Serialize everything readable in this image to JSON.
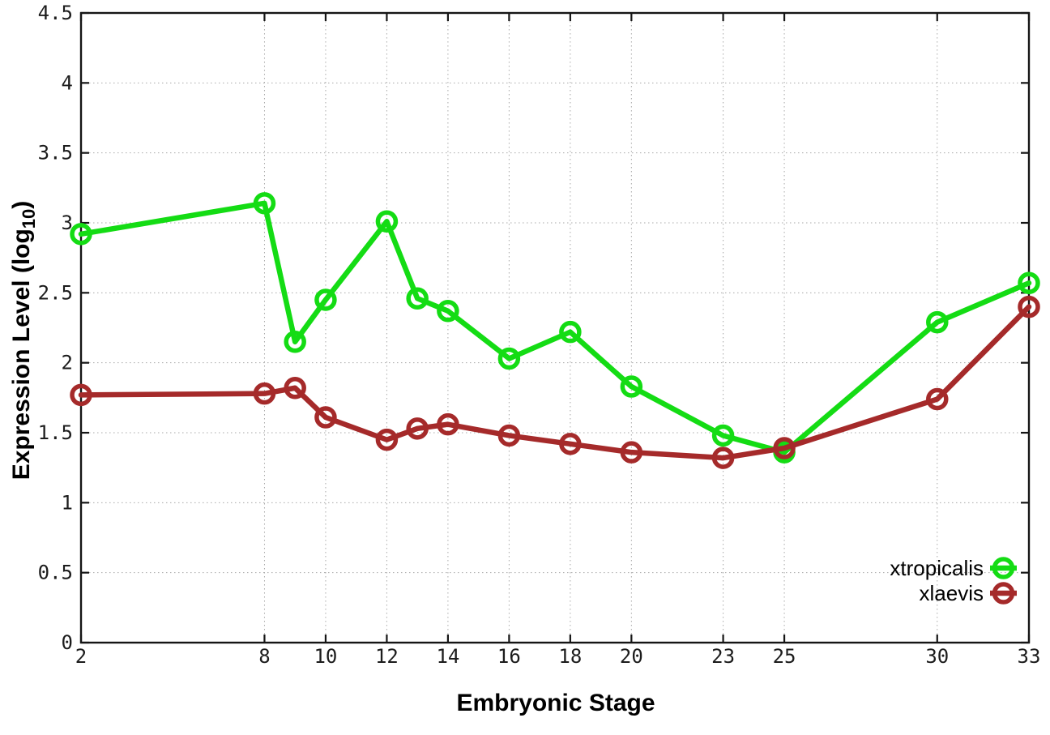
{
  "chart_data": {
    "type": "line",
    "title": "",
    "xlabel": "Embryonic Stage",
    "ylabel": "Expression Level (log10)",
    "ylabel_parts": {
      "main": "Expression Level (log",
      "sub": "10",
      "close": ")"
    },
    "x": [
      2,
      8,
      9,
      10,
      12,
      13,
      14,
      16,
      18,
      20,
      23,
      25,
      30,
      33
    ],
    "xlim": [
      2,
      33
    ],
    "ylim": [
      0,
      4.5
    ],
    "x_ticks": [
      2,
      8,
      10,
      12,
      14,
      16,
      18,
      20,
      23,
      25,
      30,
      33
    ],
    "x_tick_labels": [
      "2",
      "8",
      "10",
      "12",
      "14",
      "16",
      "18",
      "20",
      "23",
      "25",
      "30",
      "33"
    ],
    "y_ticks": [
      0,
      0.5,
      1,
      1.5,
      2,
      2.5,
      3,
      3.5,
      4,
      4.5
    ],
    "y_tick_labels": [
      "0",
      "0.5",
      "1",
      "1.5",
      "2",
      "2.5",
      "3",
      "3.5",
      "4",
      "4.5"
    ],
    "grid": "dotted",
    "legend_position": "right, inside plot, near y=0.5",
    "marker": "open-circle",
    "series": [
      {
        "name": "xtropicalis",
        "color": "#14dc14",
        "values": [
          2.92,
          3.14,
          2.15,
          2.45,
          3.01,
          2.46,
          2.37,
          2.03,
          2.22,
          1.83,
          1.48,
          1.36,
          2.29,
          2.57
        ]
      },
      {
        "name": "xlaevis",
        "color": "#a52a2a",
        "values": [
          1.77,
          1.78,
          1.82,
          1.61,
          1.45,
          1.53,
          1.56,
          1.48,
          1.42,
          1.36,
          1.32,
          1.39,
          1.74,
          2.4
        ]
      }
    ]
  }
}
